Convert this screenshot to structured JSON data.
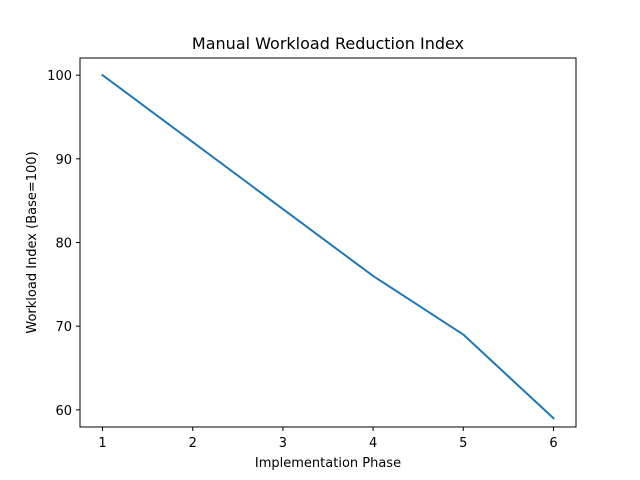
{
  "chart_data": {
    "type": "line",
    "title": "Manual Workload Reduction Index",
    "xlabel": "Implementation Phase",
    "ylabel": "Workload Index (Base=100)",
    "x": [
      1,
      2,
      3,
      4,
      5,
      6
    ],
    "series": [
      {
        "values": [
          100,
          92,
          84,
          76,
          69,
          59
        ],
        "color": "#1f77b4"
      }
    ],
    "xlim": [
      0.75,
      6.25
    ],
    "ylim": [
      57.95,
      102.05
    ],
    "xticks": [
      1,
      2,
      3,
      4,
      5,
      6
    ],
    "yticks": [
      60,
      70,
      80,
      90,
      100
    ],
    "grid": false,
    "legend": "none"
  }
}
